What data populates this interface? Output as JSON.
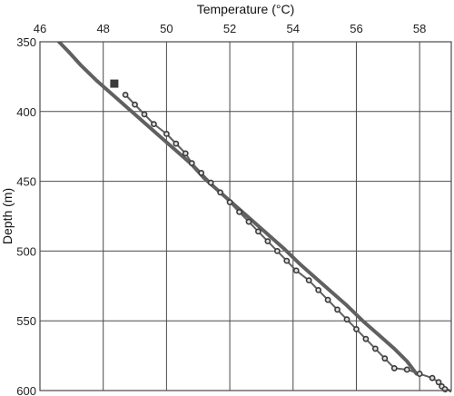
{
  "chart_data": {
    "type": "line",
    "xlabel": "Temperature (°C)",
    "ylabel": "Depth (m)",
    "xlim": [
      46,
      59
    ],
    "ylim": [
      600,
      350
    ],
    "x_axis_position": "top",
    "y_axis_inverted": true,
    "grid": true,
    "x_ticks": [
      46,
      48,
      50,
      52,
      54,
      56,
      58
    ],
    "y_ticks": [
      350,
      400,
      450,
      500,
      550,
      600
    ],
    "colors": {
      "line": "#606060",
      "marker": "#3a3a3a",
      "grid": "#4a4a4a"
    },
    "series": [
      {
        "style": "thick-line",
        "x": [
          46.6,
          46.9,
          47.3,
          47.8,
          48.3,
          48.8,
          49.3,
          49.8,
          50.3,
          50.8,
          51.2,
          51.7,
          52.2,
          52.7,
          53.2,
          53.7,
          54.2,
          54.7,
          55.2,
          55.7,
          56.2,
          56.7,
          57.2,
          57.6,
          57.8,
          57.9
        ],
        "y": [
          350,
          357,
          367,
          378,
          388,
          398,
          408,
          418,
          428,
          438,
          448,
          458,
          468,
          478,
          488,
          498,
          509,
          519,
          529,
          539,
          550,
          560,
          570,
          579,
          585,
          588
        ]
      },
      {
        "style": "line-circle-markers",
        "x": [
          48.7,
          49.0,
          49.3,
          49.6,
          50.0,
          50.3,
          50.6,
          50.8,
          51.1,
          51.4,
          51.7,
          52.0,
          52.3,
          52.6,
          52.9,
          53.2,
          53.5,
          53.8,
          54.1,
          54.5,
          54.8,
          55.1,
          55.4,
          55.7,
          56.0,
          56.3,
          56.6,
          56.9,
          57.2,
          57.6,
          58.0,
          58.4,
          58.6,
          58.7,
          58.8,
          58.9
        ],
        "y": [
          388,
          395,
          402,
          409,
          416,
          423,
          430,
          437,
          444,
          451,
          458,
          465,
          472,
          479,
          486,
          493,
          500,
          507,
          514,
          521,
          528,
          535,
          542,
          549,
          556,
          563,
          570,
          577,
          584,
          585,
          588,
          591,
          594,
          597,
          599,
          601
        ]
      }
    ],
    "markers": [
      {
        "shape": "square",
        "x": 48.35,
        "y": 380
      }
    ]
  }
}
